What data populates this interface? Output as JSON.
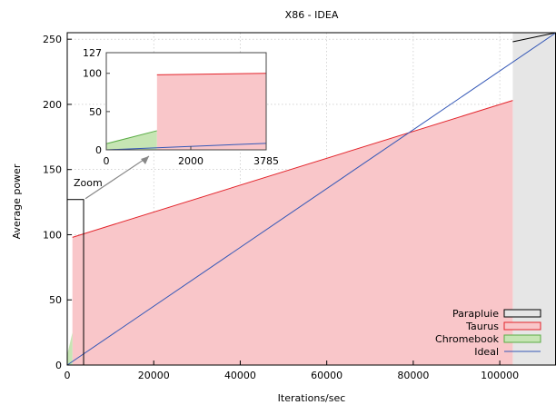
{
  "chart_data": {
    "type": "area",
    "title": "X86 - IDEA",
    "xlabel": "Iterations/sec",
    "ylabel": "Average power",
    "xlim": [
      0,
      113000
    ],
    "ylim": [
      0,
      255
    ],
    "xticks": [
      0,
      20000,
      40000,
      60000,
      80000,
      100000
    ],
    "yticks": [
      0,
      50,
      100,
      150,
      200,
      250
    ],
    "grid": true,
    "legend_position": "bottom-right",
    "colors": {
      "parapluie_fill": "#e6e6e6",
      "taurus_fill": "#f9c6c9",
      "taurus_line": "#e3242b",
      "chromebook_fill": "#c6e5b4",
      "chromebook_line": "#5aac45",
      "ideal_line": "#3558b7",
      "grid": "#bbbbbb"
    },
    "series": [
      {
        "name": "Parapluie",
        "style": "area",
        "x": [
          103000,
          113000
        ],
        "y": [
          248,
          255
        ]
      },
      {
        "name": "Taurus",
        "style": "area",
        "x": [
          1200,
          103000
        ],
        "y": [
          98,
          203
        ]
      },
      {
        "name": "Chromebook",
        "style": "area",
        "x": [
          0,
          1200
        ],
        "y": [
          8,
          25
        ]
      },
      {
        "name": "Ideal",
        "style": "line",
        "x": [
          0,
          113000
        ],
        "y": [
          0,
          255
        ]
      }
    ],
    "annotations": [
      {
        "text": "Zoom"
      }
    ],
    "inset": {
      "xlim": [
        0,
        3785
      ],
      "ylim": [
        0,
        127
      ],
      "xticks": [
        0,
        2000,
        3785
      ],
      "yticks": [
        0,
        50,
        100,
        127
      ],
      "series": [
        {
          "name": "Chromebook",
          "x": [
            0,
            1200
          ],
          "y": [
            8,
            25
          ]
        },
        {
          "name": "Taurus",
          "x": [
            1200,
            3785
          ],
          "y": [
            98,
            100
          ]
        },
        {
          "name": "Ideal",
          "x": [
            0,
            3785
          ],
          "y": [
            0,
            8.5
          ]
        }
      ]
    }
  }
}
